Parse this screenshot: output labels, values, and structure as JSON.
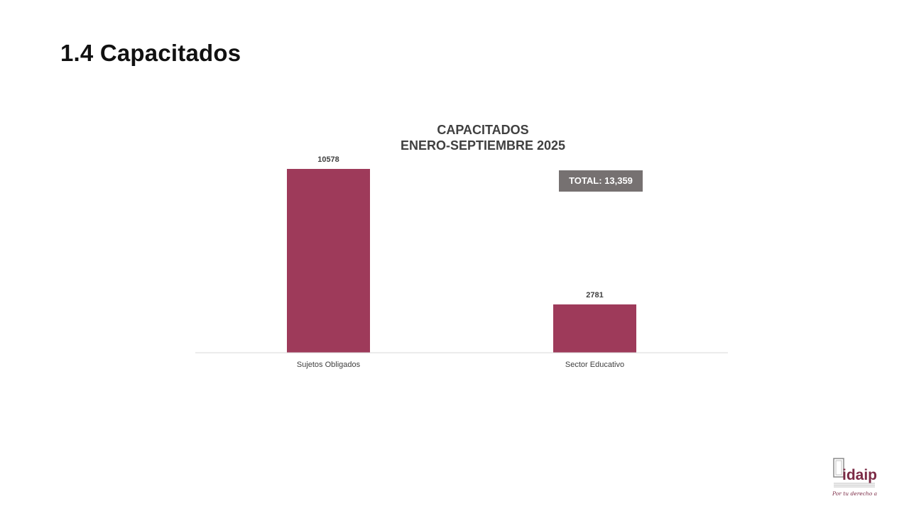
{
  "slide": {
    "title": "1.4 Capacitados"
  },
  "chart_data": {
    "type": "bar",
    "title": "CAPACITADOS",
    "subtitle": "ENERO-SEPTIEMBRE 2025",
    "categories": [
      "Sujetos Obligados",
      "Sector Educativo"
    ],
    "values": [
      10578,
      2781
    ],
    "data_labels": [
      "10578",
      "2781"
    ],
    "annotation": "TOTAL: 13,359",
    "xlabel": "",
    "ylabel": "",
    "ylim": [
      0,
      10578
    ],
    "grid": false,
    "legend": "none",
    "bar_color": "#9e3a5a"
  },
  "logo": {
    "text": "idaip",
    "tagline": "Por tu derecho a saber",
    "color": "#7b2a45",
    "icon": "document-frame-icon"
  }
}
